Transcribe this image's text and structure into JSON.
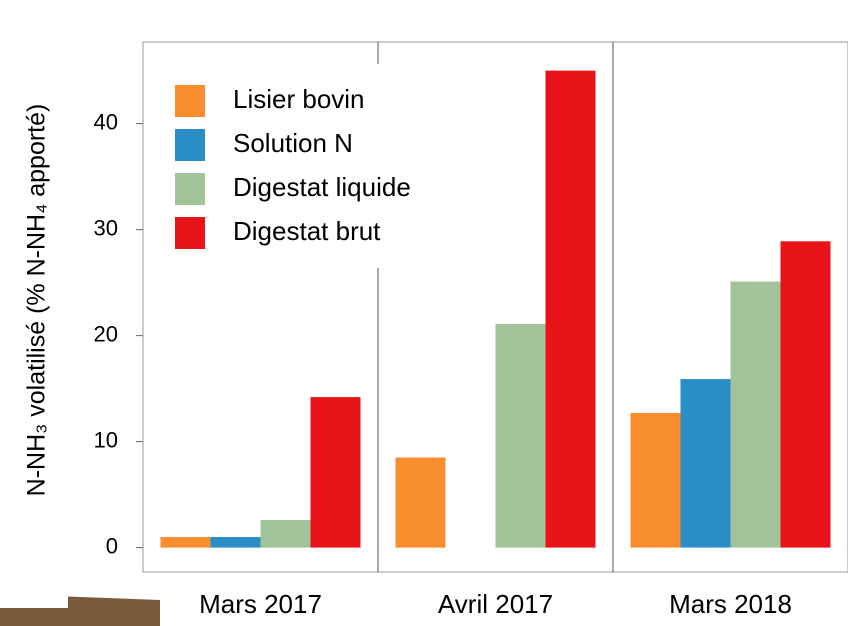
{
  "chart_data": {
    "type": "bar",
    "ylabel": "N-NH₃ volatilisé (% N-NH₄ apporté)",
    "categories": [
      "Mars 2017",
      "Avril 2017",
      "Mars 2018"
    ],
    "series": [
      {
        "name": "Lisier bovin",
        "color": "#f98e2f",
        "values": [
          1.0,
          8.5,
          12.7
        ]
      },
      {
        "name": "Solution N",
        "color": "#2a8fc7",
        "values": [
          1.0,
          null,
          15.9
        ]
      },
      {
        "name": "Digestat liquide",
        "color": "#a3c49a",
        "values": [
          2.6,
          21.1,
          25.1
        ]
      },
      {
        "name": "Digestat brut",
        "color": "#e8141a",
        "values": [
          14.2,
          45.0,
          28.9
        ]
      }
    ],
    "ylim": [
      -2.3,
      47.7
    ],
    "yticks": [
      0,
      10,
      20,
      30,
      40
    ],
    "grid": true,
    "legend": "upper left"
  }
}
